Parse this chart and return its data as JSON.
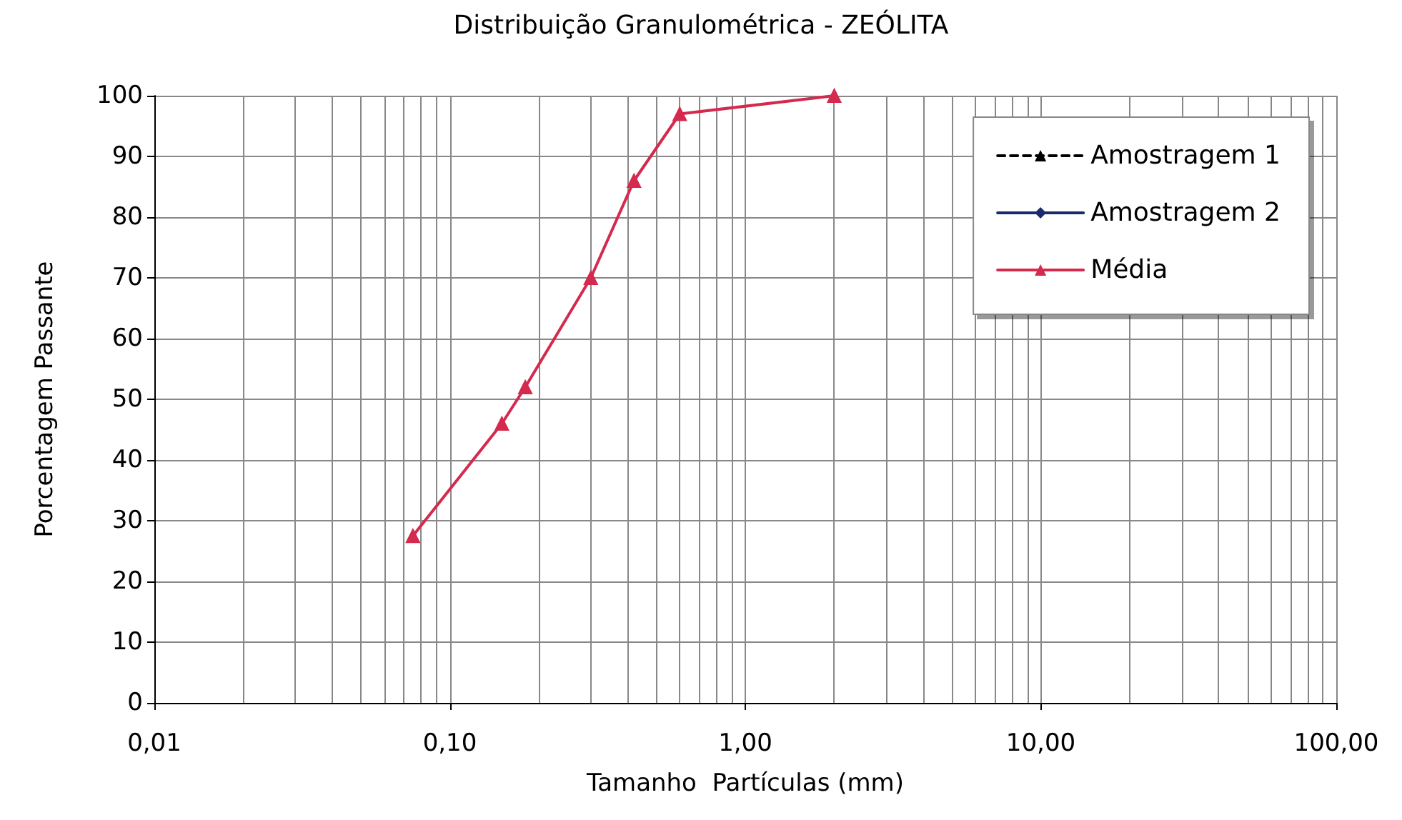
{
  "chart_data": {
    "type": "line",
    "title": "Distribuição Granulométrica - ZEÓLITA",
    "xlabel": "Tamanho  Partículas (mm)",
    "ylabel": "Porcentagem Passante",
    "x": [
      0.075,
      0.15,
      0.18,
      0.3,
      0.42,
      0.6,
      2.0
    ],
    "series": [
      {
        "name": "Amostragem 1",
        "color": "#000000",
        "marker": "triangle",
        "line_style": "dashed",
        "values": [
          null,
          null,
          null,
          null,
          null,
          null,
          null
        ]
      },
      {
        "name": "Amostragem 2",
        "color": "#1a2a6c",
        "marker": "diamond",
        "line_style": "solid",
        "values": [
          null,
          null,
          null,
          null,
          null,
          null,
          null
        ]
      },
      {
        "name": "Média",
        "color": "#d42a4e",
        "marker": "triangle",
        "line_style": "solid",
        "values": [
          27.5,
          46,
          52,
          70,
          86,
          97,
          100
        ]
      }
    ],
    "log": "x",
    "xlim": [
      0.01,
      100
    ],
    "xticks": [
      {
        "value": 0.01,
        "label": "0,01"
      },
      {
        "value": 0.1,
        "label": "0,10"
      },
      {
        "value": 1,
        "label": "1,00"
      },
      {
        "value": 10,
        "label": "10,00"
      },
      {
        "value": 100,
        "label": "100,00"
      }
    ],
    "ylim": [
      0,
      100
    ],
    "yticks": [
      0,
      10,
      20,
      30,
      40,
      50,
      60,
      70,
      80,
      90,
      100
    ],
    "grid": true,
    "legend": "top right"
  }
}
